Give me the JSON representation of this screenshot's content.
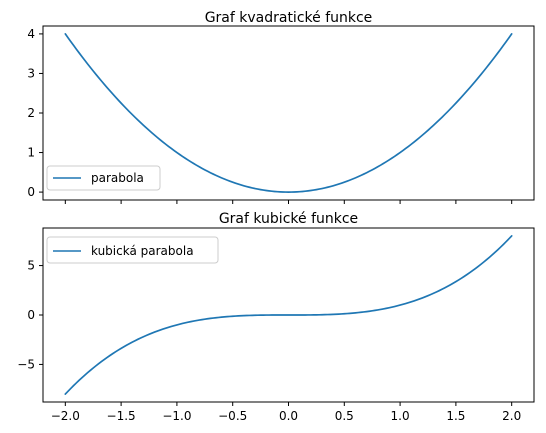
{
  "chart_data": [
    {
      "type": "line",
      "title": "Graf kvadratické funkce",
      "xlabel": "",
      "ylabel": "",
      "xlim": [
        -2.2,
        2.2
      ],
      "ylim": [
        -0.2,
        4.2
      ],
      "x_ticks": [
        -2.0,
        -1.5,
        -1.0,
        -0.5,
        0.0,
        0.5,
        1.0,
        1.5,
        2.0
      ],
      "x_tick_labels_visible": false,
      "y_ticks": [
        0,
        1,
        2,
        3,
        4
      ],
      "y_tick_labels": [
        "0",
        "1",
        "2",
        "3",
        "4"
      ],
      "grid": false,
      "legend_position": "lower-left",
      "series": [
        {
          "name": "parabola",
          "color": "#1f77b4",
          "function": "x^2",
          "x_range": [
            -2.0,
            2.0
          ]
        }
      ]
    },
    {
      "type": "line",
      "title": "Graf kubické funkce",
      "xlabel": "",
      "ylabel": "",
      "xlim": [
        -2.2,
        2.2
      ],
      "ylim": [
        -8.8,
        8.8
      ],
      "x_ticks": [
        -2.0,
        -1.5,
        -1.0,
        -0.5,
        0.0,
        0.5,
        1.0,
        1.5,
        2.0
      ],
      "x_tick_labels": [
        "−2.0",
        "−1.5",
        "−1.0",
        "−0.5",
        "0.0",
        "0.5",
        "1.0",
        "1.5",
        "2.0"
      ],
      "x_tick_labels_visible": true,
      "y_ticks": [
        -5,
        0,
        5
      ],
      "y_tick_labels": [
        "−5",
        "0",
        "5"
      ],
      "grid": false,
      "legend_position": "upper-left",
      "series": [
        {
          "name": "kubická parabola",
          "color": "#1f77b4",
          "function": "x^3",
          "x_range": [
            -2.0,
            2.0
          ]
        }
      ]
    }
  ]
}
